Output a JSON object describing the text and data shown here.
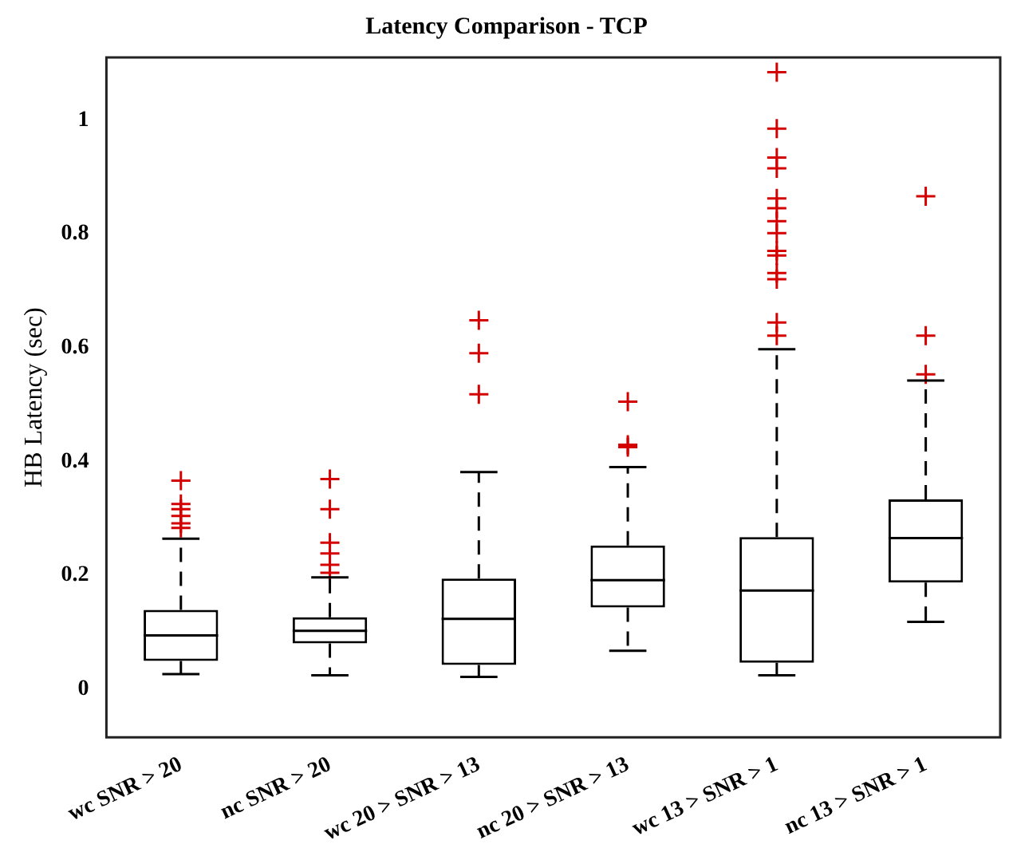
{
  "chart_data": {
    "type": "box",
    "title": "Latency Comparison - TCP",
    "ylabel": "HB Latency (sec)",
    "categories": [
      "wc SNR > 20",
      "nc SNR > 20",
      "wc 20 > SNR > 13",
      "nc 20 > SNR > 13",
      "wc 13 > SNR > 1",
      "nc 13 > SNR > 1"
    ],
    "color": "#000000",
    "marker": "cross",
    "grid": false,
    "legend": false,
    "boxes": [
      {
        "low": 0.026,
        "q1": 0.049,
        "median": 0.094,
        "q3": 0.139,
        "high": 0.264,
        "outliers": [
          0.366,
          0.325,
          0.316,
          0.304,
          0.291,
          0.283
        ]
      },
      {
        "low": 0.024,
        "q1": 0.08,
        "median": 0.102,
        "q3": 0.126,
        "high": 0.196,
        "outliers": [
          0.369,
          0.316,
          0.257,
          0.238,
          0.218,
          0.204
        ]
      },
      {
        "low": 0.021,
        "q1": 0.042,
        "median": 0.123,
        "q3": 0.194,
        "high": 0.381,
        "outliers": [
          0.648,
          0.59,
          0.518
        ]
      },
      {
        "low": 0.067,
        "q1": 0.143,
        "median": 0.191,
        "q3": 0.252,
        "high": 0.39,
        "outliers": [
          0.505,
          0.429,
          0.425
        ]
      },
      {
        "low": 0.024,
        "q1": 0.046,
        "median": 0.173,
        "q3": 0.267,
        "high": 0.597,
        "outliers": [
          1.084,
          0.985,
          0.934,
          0.915,
          0.862,
          0.845,
          0.822,
          0.801,
          0.77,
          0.762,
          0.731,
          0.72,
          0.644,
          0.621
        ]
      },
      {
        "low": 0.118,
        "q1": 0.187,
        "median": 0.265,
        "q3": 0.333,
        "high": 0.542,
        "outliers": [
          0.866,
          0.621,
          0.553
        ]
      }
    ],
    "ylim": [
      -0.085,
      1.11
    ],
    "yticks": [
      0,
      0.2,
      0.4,
      0.6,
      0.8,
      1
    ]
  }
}
